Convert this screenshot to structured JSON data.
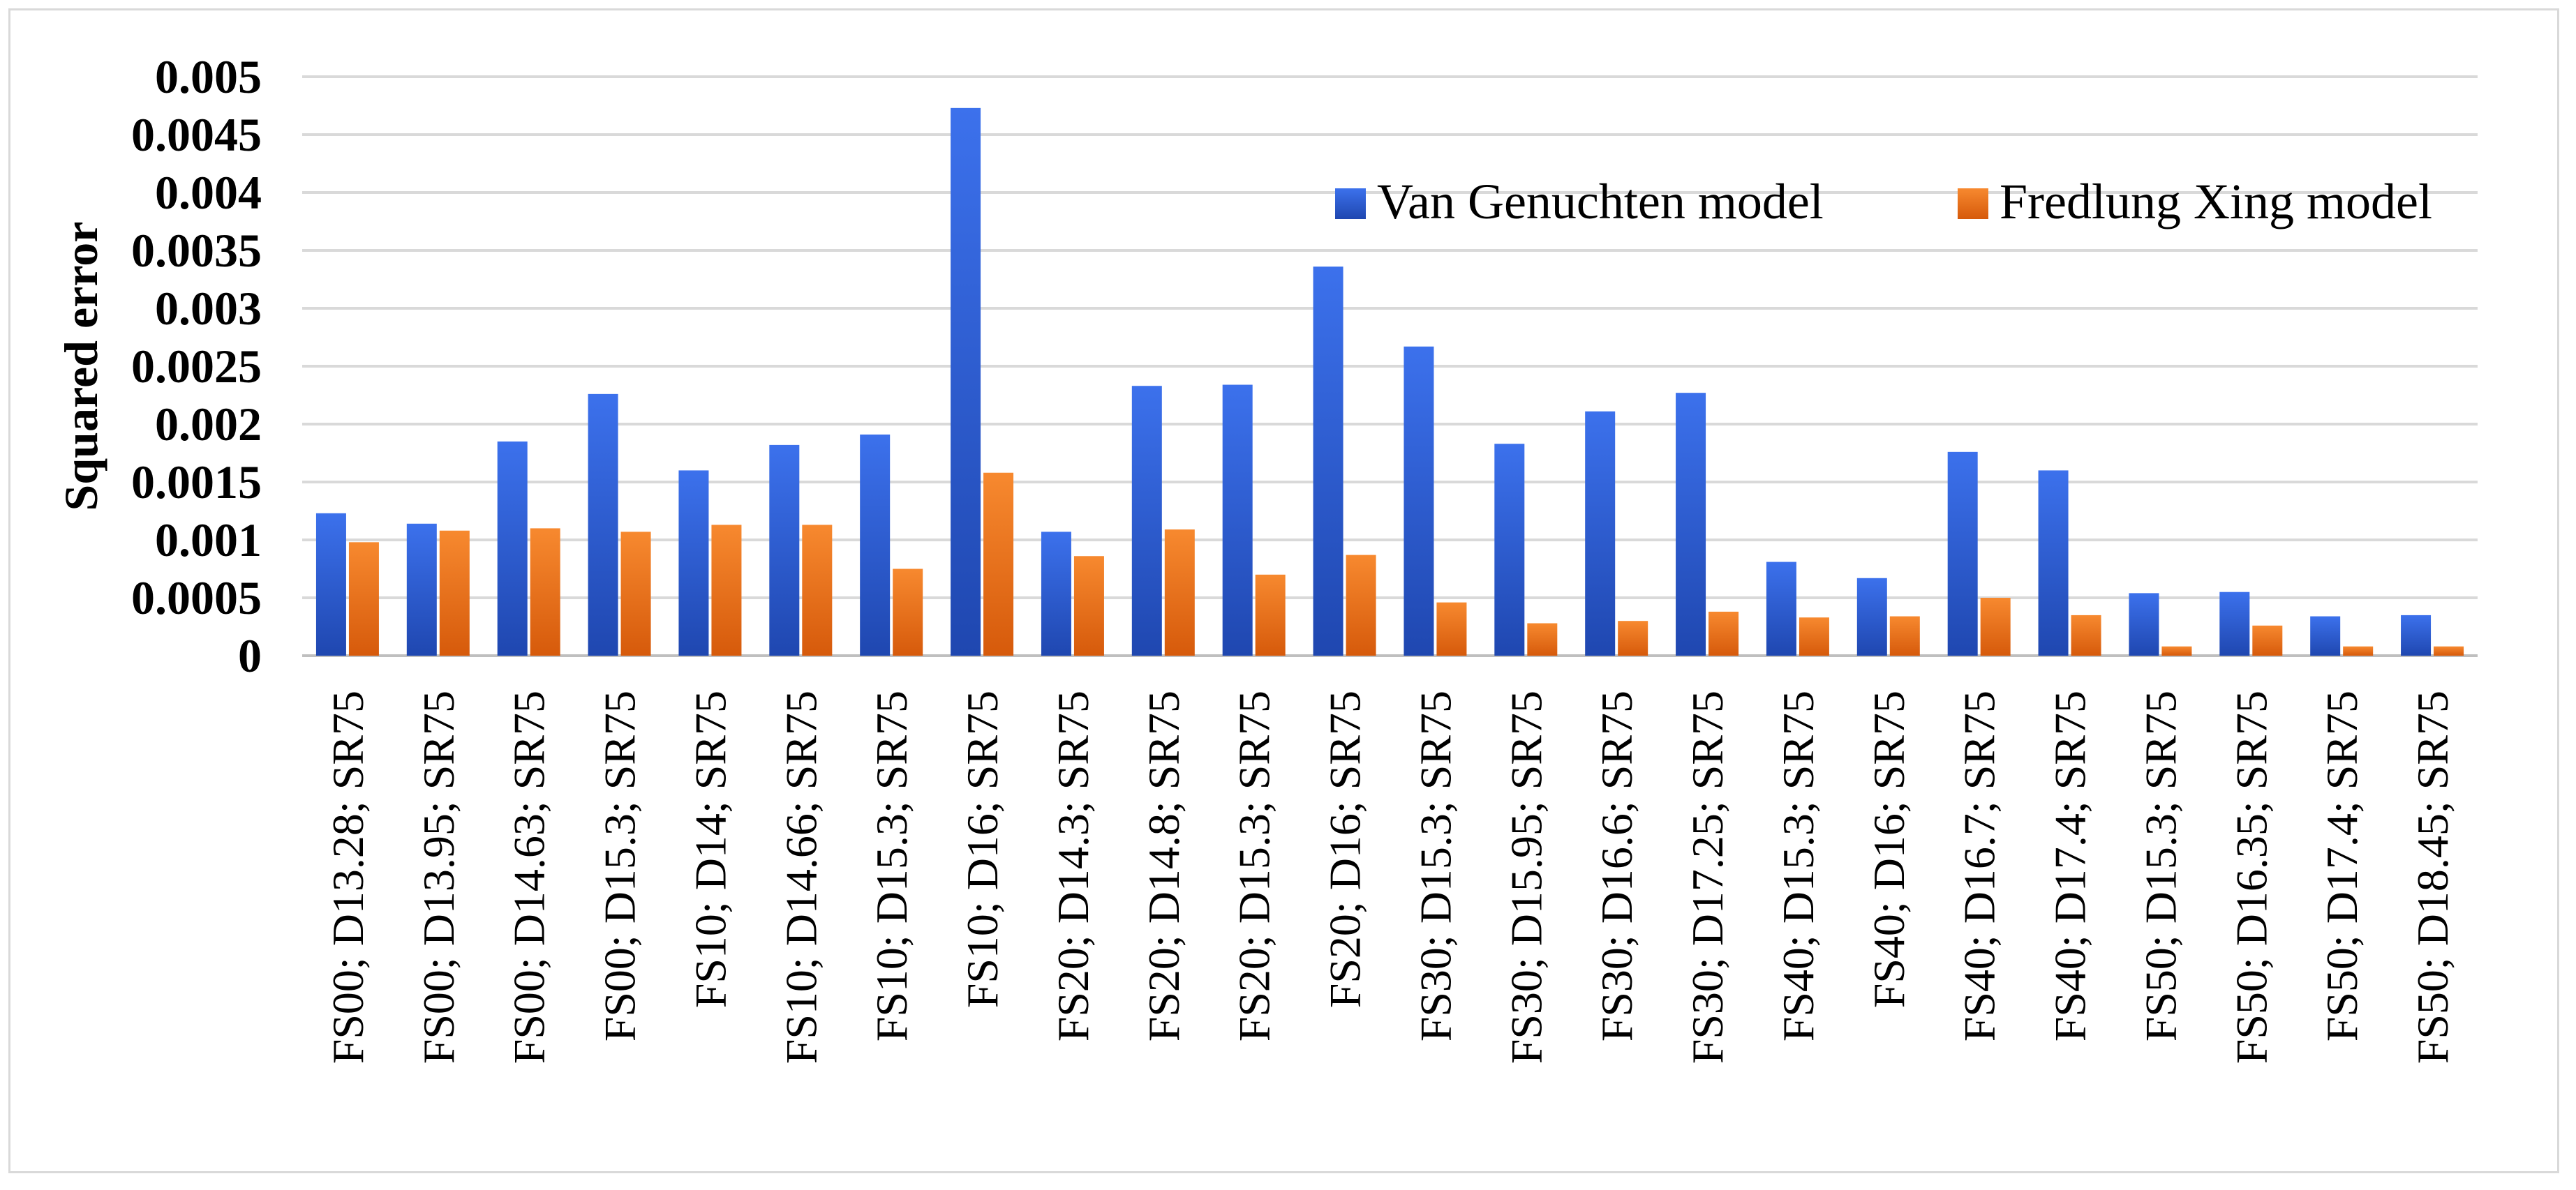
{
  "chart_data": {
    "type": "bar",
    "ylabel": "Squared error",
    "xlabel": "",
    "ylim": [
      0,
      0.005
    ],
    "yticks": [
      "0",
      "0.0005",
      "0.001",
      "0.0015",
      "0.002",
      "0.0025",
      "0.003",
      "0.0035",
      "0.004",
      "0.0045",
      "0.005"
    ],
    "grid": true,
    "legend_position": "top-right",
    "categories": [
      "FS00; D13.28; SR75",
      "FS00; D13.95; SR75",
      "FS00; D14.63; SR75",
      "FS00; D15.3; SR75",
      "FS10; D14; SR75",
      "FS10; D14.66; SR75",
      "FS10; D15.3; SR75",
      "FS10; D16; SR75",
      "FS20; D14.3; SR75",
      "FS20; D14.8; SR75",
      "FS20; D15.3; SR75",
      "FS20; D16; SR75",
      "FS30; D15.3; SR75",
      "FS30; D15.95; SR75",
      "FS30; D16.6; SR75",
      "FS30; D17.25; SR75",
      "FS40; D15.3; SR75",
      "FS40; D16; SR75",
      "FS40; D16.7; SR75",
      "FS40; D17.4; SR75",
      "FS50; D15.3; SR75",
      "FS50; D16.35; SR75",
      "FS50; D17.4; SR75",
      "FS50; D18.45; SR75"
    ],
    "series": [
      {
        "name": "Van Genuchten model",
        "color": "#2e5fd6",
        "values": [
          0.00123,
          0.00114,
          0.00185,
          0.00226,
          0.0016,
          0.00182,
          0.00191,
          0.00473,
          0.00107,
          0.00233,
          0.00234,
          0.00336,
          0.00267,
          0.00183,
          0.00211,
          0.00227,
          0.00081,
          0.00067,
          0.00176,
          0.0016,
          0.00054,
          0.00055,
          0.00034,
          0.00035
        ]
      },
      {
        "name": "Fredlung Xing model",
        "color": "#ec6c17",
        "values": [
          0.00098,
          0.00108,
          0.0011,
          0.00107,
          0.00113,
          0.00113,
          0.00075,
          0.00158,
          0.00086,
          0.00109,
          0.0007,
          0.00087,
          0.00046,
          0.00028,
          0.0003,
          0.00038,
          0.00033,
          0.00034,
          0.0005,
          0.00035,
          8e-05,
          0.00026,
          8e-05,
          8e-05
        ]
      }
    ]
  }
}
